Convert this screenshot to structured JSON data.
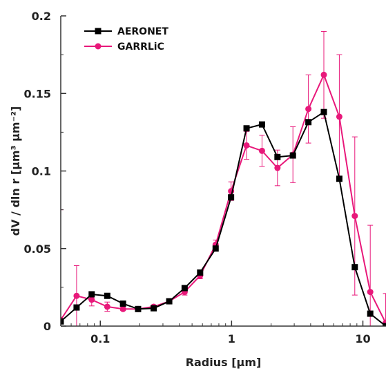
{
  "chart_data": {
    "type": "line",
    "xlabel": "Radius [μm]",
    "ylabel": "dV / dln r [μm³ μm⁻²]",
    "xscale": "log",
    "xlim": [
      0.05,
      15
    ],
    "ylim": [
      0,
      0.2
    ],
    "xticks": [
      {
        "value": 0.1,
        "label": "0.1"
      },
      {
        "value": 1,
        "label": "1"
      },
      {
        "value": 10,
        "label": "10"
      }
    ],
    "yticks": [
      {
        "value": 0,
        "label": "0"
      },
      {
        "value": 0.05,
        "label": "0.05"
      },
      {
        "value": 0.1,
        "label": "0.1"
      },
      {
        "value": 0.15,
        "label": "0.15"
      },
      {
        "value": 0.2,
        "label": "0.2"
      }
    ],
    "legend_position": "top-left",
    "series": [
      {
        "name": "AERONET",
        "color": "#000000",
        "marker": "square",
        "x": [
          0.05,
          0.066,
          0.086,
          0.113,
          0.149,
          0.194,
          0.255,
          0.335,
          0.439,
          0.576,
          0.756,
          0.991,
          1.3,
          1.705,
          2.236,
          2.932,
          3.846,
          5.044,
          6.616,
          8.677,
          11.38,
          14.92
        ],
        "y": [
          0.003,
          0.012,
          0.0205,
          0.0195,
          0.0145,
          0.011,
          0.0115,
          0.016,
          0.0245,
          0.0345,
          0.05,
          0.083,
          0.1275,
          0.13,
          0.109,
          0.11,
          0.1315,
          0.138,
          0.095,
          0.038,
          0.008,
          0
        ]
      },
      {
        "name": "GARRLiC",
        "color": "#e8187a",
        "marker": "circle",
        "x": [
          0.05,
          0.066,
          0.086,
          0.113,
          0.149,
          0.194,
          0.255,
          0.335,
          0.439,
          0.576,
          0.756,
          0.991,
          1.3,
          1.705,
          2.236,
          2.932,
          3.846,
          5.044,
          6.616,
          8.677,
          11.38,
          14.92
        ],
        "y": [
          0.004,
          0.0195,
          0.017,
          0.0125,
          0.011,
          0.011,
          0.0125,
          0.016,
          0.022,
          0.0325,
          0.0525,
          0.087,
          0.1165,
          0.113,
          0.102,
          0.1105,
          0.14,
          0.162,
          0.135,
          0.071,
          0.022,
          0.002
        ],
        "error": [
          0.071,
          0.0195,
          0.004,
          0.003,
          0.001,
          0.001,
          0.001,
          0.001,
          0.002,
          0.002,
          0.003,
          0.006,
          0.009,
          0.01,
          0.0115,
          0.018,
          0.022,
          0.028,
          0.04,
          0.051,
          0.043,
          0.019
        ]
      }
    ]
  }
}
